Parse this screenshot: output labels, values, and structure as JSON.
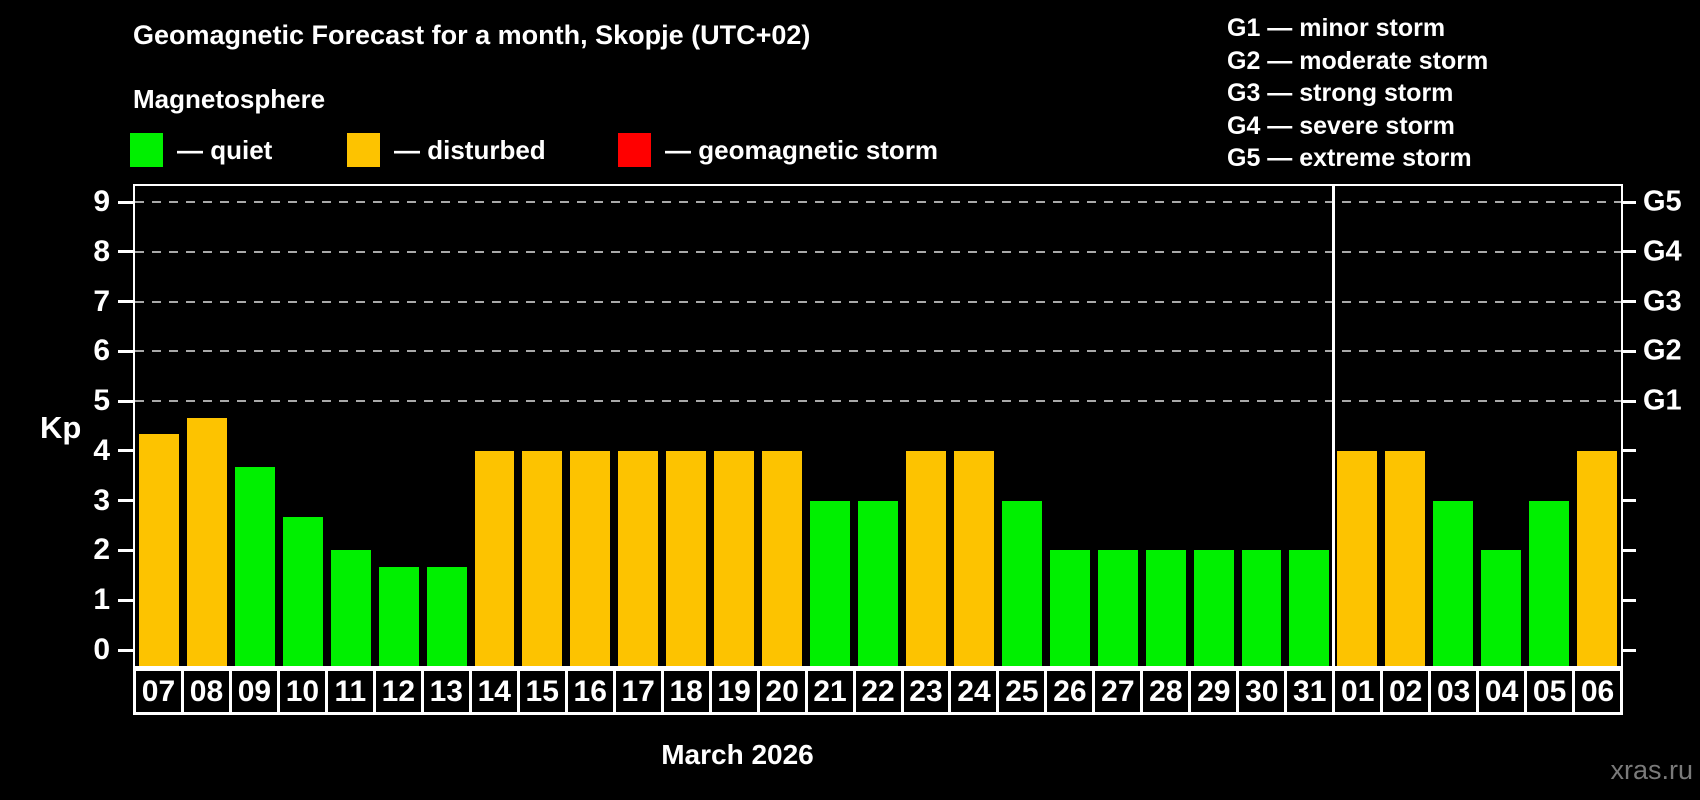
{
  "header": {
    "title": "Geomagnetic Forecast for a month, Skopje (UTC+02)",
    "subtitle": "Magnetosphere"
  },
  "legend": {
    "items": [
      {
        "name": "quiet",
        "label": "— quiet",
        "color": "#00f000"
      },
      {
        "name": "disturbed",
        "label": "— disturbed",
        "color": "#fdc300"
      },
      {
        "name": "storm",
        "label": "— geomagnetic storm",
        "color": "#ff0000"
      }
    ]
  },
  "storm_scale": {
    "items": [
      {
        "label": "G1 — minor storm"
      },
      {
        "label": "G2 — moderate storm"
      },
      {
        "label": "G3 — strong storm"
      },
      {
        "label": "G4 — severe storm"
      },
      {
        "label": "G5 — extreme storm"
      }
    ]
  },
  "chart_data": {
    "type": "bar",
    "ylabel": "Kp",
    "ylim": [
      0,
      9
    ],
    "yticks": [
      0,
      1,
      2,
      3,
      4,
      5,
      6,
      7,
      8,
      9
    ],
    "gridlines_at": [
      5,
      6,
      7,
      8,
      9
    ],
    "grid": "dashed horizontal at storm levels only",
    "right_axis": [
      {
        "kp": 5,
        "label": "G1"
      },
      {
        "kp": 6,
        "label": "G2"
      },
      {
        "kp": 7,
        "label": "G3"
      },
      {
        "kp": 8,
        "label": "G4"
      },
      {
        "kp": 9,
        "label": "G5"
      }
    ],
    "x_axis_label": "March 2026",
    "month_separator_after_index": 25,
    "colors": {
      "quiet": "#00f000",
      "disturbed": "#fdc300",
      "storm": "#ff0000"
    },
    "bars": [
      {
        "date": "07",
        "kp": 4.33,
        "status": "disturbed"
      },
      {
        "date": "08",
        "kp": 4.67,
        "status": "disturbed"
      },
      {
        "date": "09",
        "kp": 3.67,
        "status": "quiet"
      },
      {
        "date": "10",
        "kp": 2.67,
        "status": "quiet"
      },
      {
        "date": "11",
        "kp": 2.0,
        "status": "quiet"
      },
      {
        "date": "12",
        "kp": 1.67,
        "status": "quiet"
      },
      {
        "date": "13",
        "kp": 1.67,
        "status": "quiet"
      },
      {
        "date": "14",
        "kp": 4.0,
        "status": "disturbed"
      },
      {
        "date": "15",
        "kp": 4.0,
        "status": "disturbed"
      },
      {
        "date": "16",
        "kp": 4.0,
        "status": "disturbed"
      },
      {
        "date": "17",
        "kp": 4.0,
        "status": "disturbed"
      },
      {
        "date": "18",
        "kp": 4.0,
        "status": "disturbed"
      },
      {
        "date": "19",
        "kp": 4.0,
        "status": "disturbed"
      },
      {
        "date": "20",
        "kp": 4.0,
        "status": "disturbed"
      },
      {
        "date": "21",
        "kp": 3.0,
        "status": "quiet"
      },
      {
        "date": "22",
        "kp": 3.0,
        "status": "quiet"
      },
      {
        "date": "23",
        "kp": 4.0,
        "status": "disturbed"
      },
      {
        "date": "24",
        "kp": 4.0,
        "status": "disturbed"
      },
      {
        "date": "25",
        "kp": 3.0,
        "status": "quiet"
      },
      {
        "date": "26",
        "kp": 2.0,
        "status": "quiet"
      },
      {
        "date": "27",
        "kp": 2.0,
        "status": "quiet"
      },
      {
        "date": "28",
        "kp": 2.0,
        "status": "quiet"
      },
      {
        "date": "29",
        "kp": 2.0,
        "status": "quiet"
      },
      {
        "date": "30",
        "kp": 2.0,
        "status": "quiet"
      },
      {
        "date": "31",
        "kp": 2.0,
        "status": "quiet"
      },
      {
        "date": "01",
        "kp": 4.0,
        "status": "disturbed"
      },
      {
        "date": "02",
        "kp": 4.0,
        "status": "disturbed"
      },
      {
        "date": "03",
        "kp": 3.0,
        "status": "quiet"
      },
      {
        "date": "04",
        "kp": 2.0,
        "status": "quiet"
      },
      {
        "date": "05",
        "kp": 3.0,
        "status": "quiet"
      },
      {
        "date": "06",
        "kp": 4.0,
        "status": "disturbed"
      }
    ]
  },
  "watermark": "xras.ru"
}
